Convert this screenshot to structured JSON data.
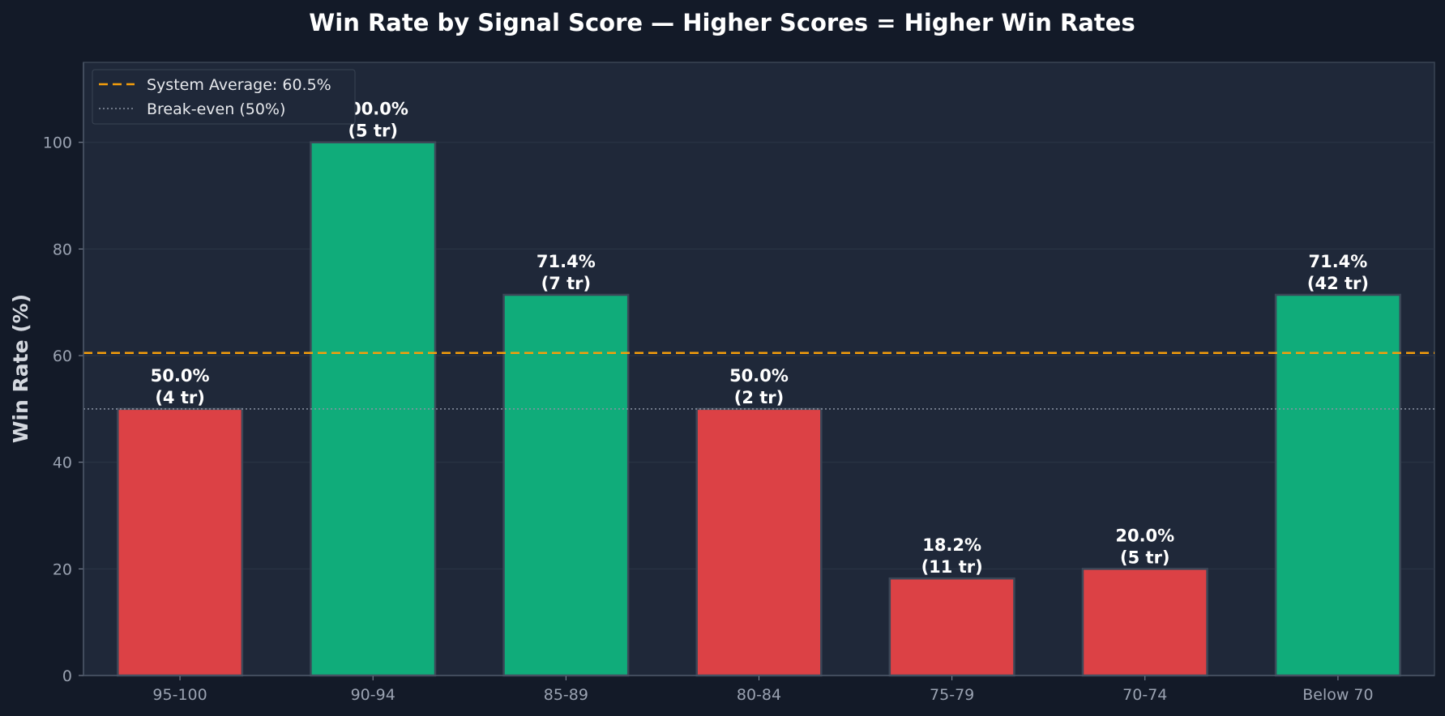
{
  "chart_data": {
    "type": "bar",
    "title": "Win Rate by Signal Score — Higher Scores = Higher Win Rates",
    "xlabel": "",
    "ylabel": "Win Rate (%)",
    "ylim": [
      0,
      115
    ],
    "yticks": [
      0,
      20,
      40,
      60,
      80,
      100
    ],
    "categories": [
      "95-100",
      "90-94",
      "85-89",
      "80-84",
      "75-79",
      "70-74",
      "Below 70"
    ],
    "values": [
      50.0,
      100.0,
      71.4,
      50.0,
      18.2,
      20.0,
      71.4
    ],
    "trades": [
      4,
      5,
      7,
      2,
      11,
      5,
      42
    ],
    "bar_labels": [
      {
        "rate": "50.0%",
        "trades": "(4 tr)"
      },
      {
        "rate": "100.0%",
        "trades": "(5 tr)"
      },
      {
        "rate": "71.4%",
        "trades": "(7 tr)"
      },
      {
        "rate": "50.0%",
        "trades": "(2 tr)"
      },
      {
        "rate": "18.2%",
        "trades": "(11 tr)"
      },
      {
        "rate": "20.0%",
        "trades": "(5 tr)"
      },
      {
        "rate": "71.4%",
        "trades": "(42 tr)"
      }
    ],
    "reference_lines": [
      {
        "label": "System Average: 60.5%",
        "value": 60.5,
        "style": "dashed",
        "color": "#f59e0b"
      },
      {
        "label": "Break-even (50%)",
        "value": 50,
        "style": "dotted",
        "color": "#8a93a3"
      }
    ],
    "legend_position": "top-left",
    "grid": true,
    "colors": {
      "above": "#10ac7a",
      "below": "#dc4145",
      "figure_background": "#131a28",
      "plot_background": "#1f2839",
      "bar_edge": "#3c4757",
      "grid": "#2c3647"
    }
  }
}
